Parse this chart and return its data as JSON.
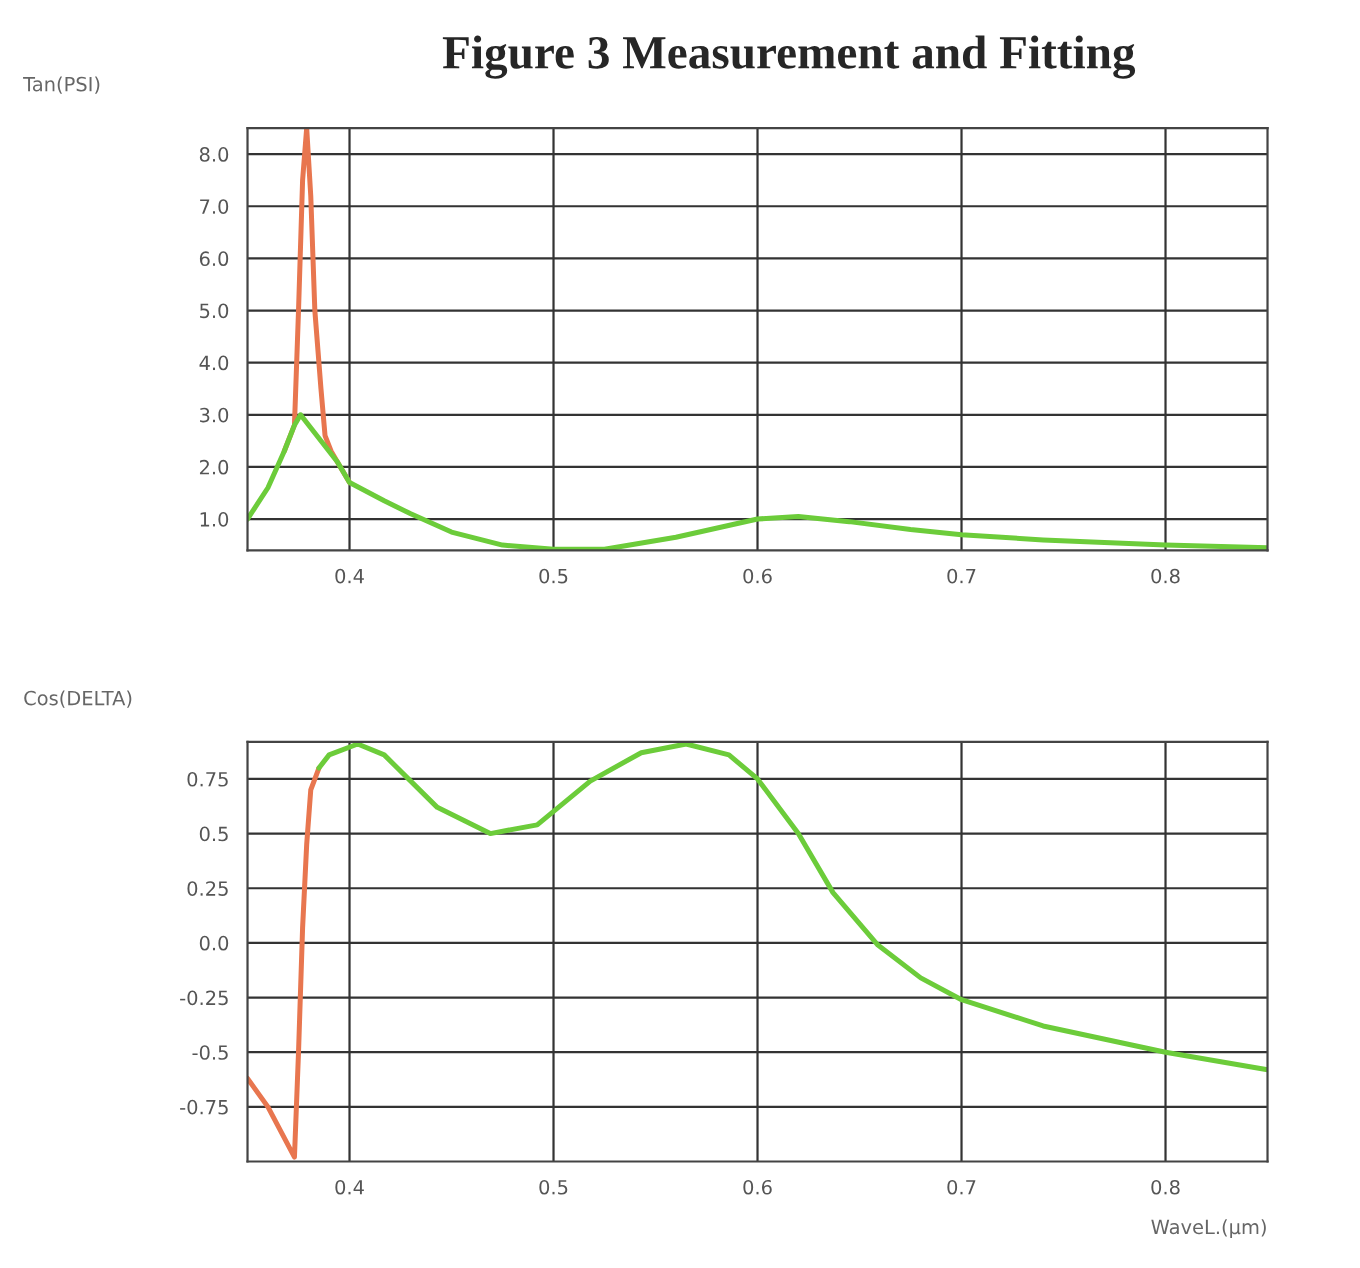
{
  "chart_data": [
    {
      "type": "line",
      "title": "Figure 3 Measurement and Fitting",
      "ylabel": "Tan(PSI)",
      "grid": true,
      "line_style": "solid",
      "marker": "none",
      "xlim": [
        0.35,
        0.85
      ],
      "xticks": [
        0.4,
        0.5,
        0.6,
        0.7,
        0.8
      ],
      "ylim": [
        0.4,
        8.5
      ],
      "yticks": [
        {
          "value": 1,
          "label": "1.0"
        },
        {
          "value": 2,
          "label": "2.0"
        },
        {
          "value": 3,
          "label": "3.0"
        },
        {
          "value": 4,
          "label": "4.0"
        },
        {
          "value": 5,
          "label": "5.0"
        },
        {
          "value": 6,
          "label": "6.0"
        },
        {
          "value": 7,
          "label": "7.0"
        },
        {
          "value": 8,
          "label": "8.0"
        }
      ],
      "series": [
        {
          "color": "#e8764f",
          "x": [
            0.368,
            0.373,
            0.375,
            0.377,
            0.379,
            0.381,
            0.383,
            0.386,
            0.388,
            0.391,
            0.394,
            0.4
          ],
          "values": [
            2.3,
            2.8,
            5.0,
            7.5,
            8.5,
            7.2,
            5.0,
            3.5,
            2.6,
            2.3,
            2.1,
            1.7
          ]
        },
        {
          "color": "#6ccc3a",
          "x": [
            0.35,
            0.36,
            0.368,
            0.373,
            0.376,
            0.394,
            0.4,
            0.417,
            0.43,
            0.45,
            0.475,
            0.5,
            0.525,
            0.56,
            0.6,
            0.62,
            0.645,
            0.675,
            0.7,
            0.74,
            0.8,
            0.85
          ],
          "values": [
            1.0,
            1.6,
            2.3,
            2.8,
            3.0,
            2.1,
            1.7,
            1.35,
            1.1,
            0.75,
            0.5,
            0.42,
            0.42,
            0.65,
            1.0,
            1.05,
            0.95,
            0.8,
            0.7,
            0.6,
            0.5,
            0.45
          ]
        }
      ]
    },
    {
      "type": "line",
      "ylabel": "Cos(DELTA)",
      "xlabel": "WaveL.(μm)",
      "grid": true,
      "line_style": "solid",
      "marker": "none",
      "xlim": [
        0.35,
        0.85
      ],
      "xticks": [
        0.4,
        0.5,
        0.6,
        0.7,
        0.8
      ],
      "ylim": [
        -1.0,
        0.92
      ],
      "yticks": [
        {
          "value": -0.75,
          "label": "-0.75"
        },
        {
          "value": -0.5,
          "label": "-0.5"
        },
        {
          "value": -0.25,
          "label": "-0.25"
        },
        {
          "value": 0,
          "label": "0.0"
        },
        {
          "value": 0.25,
          "label": "0.25"
        },
        {
          "value": 0.5,
          "label": "0.5"
        },
        {
          "value": 0.75,
          "label": "0.75"
        }
      ],
      "series": [
        {
          "color": "#e8764f",
          "x": [
            0.35,
            0.36,
            0.373,
            0.375,
            0.377,
            0.379,
            0.381,
            0.385
          ],
          "values": [
            -0.62,
            -0.75,
            -0.98,
            -0.5,
            0.07,
            0.45,
            0.7,
            0.8
          ]
        },
        {
          "color": "#6ccc3a",
          "x": [
            0.385,
            0.39,
            0.404,
            0.417,
            0.443,
            0.469,
            0.492,
            0.518,
            0.543,
            0.565,
            0.586,
            0.6,
            0.62,
            0.637,
            0.659,
            0.68,
            0.7,
            0.74,
            0.8,
            0.85
          ],
          "values": [
            0.8,
            0.86,
            0.91,
            0.86,
            0.62,
            0.5,
            0.54,
            0.74,
            0.87,
            0.91,
            0.86,
            0.75,
            0.5,
            0.23,
            -0.01,
            -0.16,
            -0.26,
            -0.38,
            -0.5,
            -0.58
          ]
        }
      ]
    }
  ]
}
